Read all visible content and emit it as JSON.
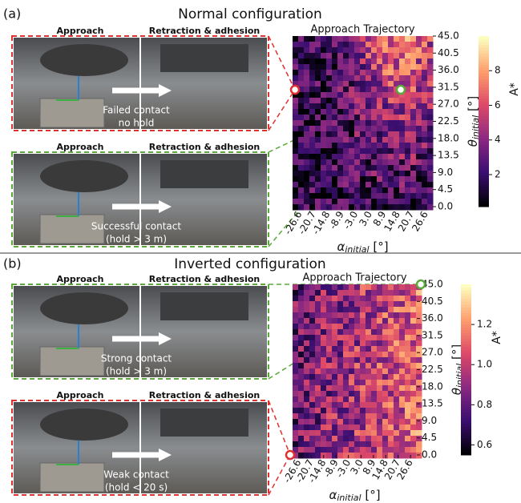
{
  "panels": [
    {
      "label": "(a)",
      "title": "Normal configuration",
      "groups": [
        {
          "captions": [
            "Approach",
            "Retraction & adhesion"
          ],
          "result": [
            "Failed contact",
            "no hold"
          ],
          "color": "#e03030"
        },
        {
          "captions": [
            "Approach",
            "Retraction & adhesion"
          ],
          "result": [
            "Successful contact",
            "(hold > 3 m)"
          ],
          "color": "#5aaa3a"
        }
      ],
      "map": {
        "title": "Approach Trajectory",
        "xlabel": {
          "symbol": "α",
          "subscript": "initial",
          "unit": " [°]"
        },
        "ylabel": {
          "symbol": "θ",
          "subscript": "initial",
          "unit": " [°]"
        },
        "xlim": [
          -29.6,
          29.6
        ],
        "xticks": [
          -26.6,
          -20.7,
          -14.8,
          -8.9,
          {
            "value": -3,
            "label": "-3.0"
          },
          {
            "value": 3,
            "label": "3.0"
          },
          8.9,
          14.8,
          20.7,
          26.6
        ],
        "ylim": [
          0,
          45
        ],
        "yticks": [
          {
            "value": 0,
            "label": "0.0"
          },
          4.5,
          {
            "value": 9,
            "label": "9.0"
          },
          13.5,
          {
            "value": 18,
            "label": "18.0"
          },
          22.5,
          {
            "value": 27,
            "label": "27.0"
          },
          31.5,
          {
            "value": 36,
            "label": "36.0"
          },
          40.5,
          {
            "value": 45,
            "label": "45.0"
          }
        ],
        "colorbar": {
          "label": "A*",
          "clim": [
            0.15,
            10
          ],
          "ticks": [
            2,
            4,
            6,
            8
          ]
        }
      }
    },
    {
      "label": "(b)",
      "title": "Inverted configuration",
      "groups": [
        {
          "captions": [
            "Approach",
            "Retraction & adhesion"
          ],
          "result": [
            "Strong contact",
            "(hold > 3 m)"
          ],
          "color": "#5aaa3a"
        },
        {
          "captions": [
            "Approach",
            "Retraction & adhesion"
          ],
          "result": [
            "Weak contact",
            "(hold < 20 s)"
          ],
          "color": "#e03030"
        }
      ],
      "map": {
        "title": "Approach Trajectory",
        "xlabel": {
          "symbol": "α",
          "subscript": "initial",
          "unit": " [°]"
        },
        "ylabel": {
          "symbol": "θ",
          "subscript": "initial",
          "unit": " [°]"
        },
        "xlim": [
          -29.6,
          29.6
        ],
        "xticks": [
          -26.6,
          -20.7,
          -14.8,
          -8.9,
          {
            "value": -3,
            "label": "-3.0"
          },
          {
            "value": 3,
            "label": "3.0"
          },
          8.9,
          14.8,
          20.7,
          26.6
        ],
        "ylim": [
          0,
          45
        ],
        "yticks": [
          {
            "value": 0,
            "label": "0.0"
          },
          4.5,
          {
            "value": 9,
            "label": "9.0"
          },
          13.5,
          {
            "value": 18,
            "label": "18.0"
          },
          22.5,
          {
            "value": 27,
            "label": "27.0"
          },
          31.5,
          {
            "value": 36,
            "label": "36.0"
          },
          40.5,
          {
            "value": 45,
            "label": "45.0"
          }
        ],
        "colorbar": {
          "label": "A*",
          "clim": [
            0.55,
            1.4
          ],
          "ticks": [
            0.6,
            0.8,
            {
              "value": 1,
              "label": "1.0"
            },
            1.2
          ]
        }
      }
    }
  ]
}
